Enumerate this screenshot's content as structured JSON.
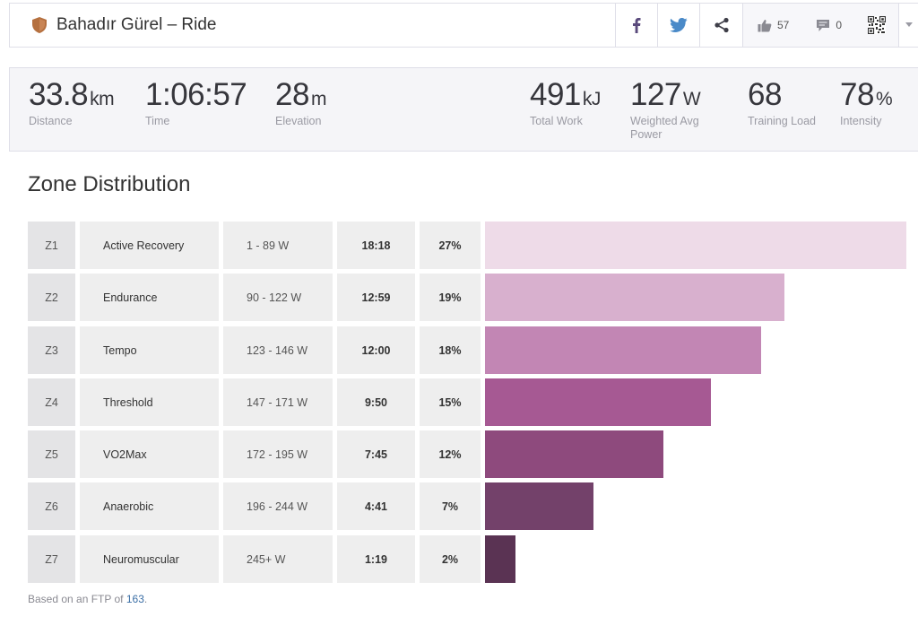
{
  "header": {
    "title": "Bahadır Gürel – Ride",
    "kudos_count": "57",
    "comments_count": "0",
    "icons": [
      "shield-badge-icon",
      "facebook-icon",
      "twitter-icon",
      "share-icon",
      "thumbs-up-icon",
      "comment-icon",
      "qr-code-icon",
      "chevron-down-icon"
    ]
  },
  "stats": {
    "distance": {
      "value": "33.8",
      "unit": "km",
      "label": "Distance"
    },
    "time": {
      "value": "1:06:57",
      "label": "Time"
    },
    "elevation": {
      "value": "28",
      "unit": "m",
      "label": "Elevation"
    },
    "total_work": {
      "value": "491",
      "unit": "kJ",
      "label": "Total Work"
    },
    "weighted_power": {
      "value": "127",
      "unit": "W",
      "label": "Weighted Avg Power"
    },
    "training_load": {
      "value": "68",
      "label": "Training Load"
    },
    "intensity": {
      "value": "78",
      "unit": "%",
      "label": "Intensity"
    }
  },
  "zones": {
    "title": "Zone Distribution",
    "rows": [
      {
        "zone": "Z1",
        "name": "Active Recovery",
        "range": "1 - 89 W",
        "time": "18:18",
        "pct": "27%",
        "fill": 1.0,
        "color": "#eedbe8"
      },
      {
        "zone": "Z2",
        "name": "Endurance",
        "range": "90 - 122 W",
        "time": "12:59",
        "pct": "19%",
        "fill": 0.71,
        "color": "#d8b0ce"
      },
      {
        "zone": "Z3",
        "name": "Tempo",
        "range": "123 - 146 W",
        "time": "12:00",
        "pct": "18%",
        "fill": 0.655,
        "color": "#c286b4"
      },
      {
        "zone": "Z4",
        "name": "Threshold",
        "range": "147 - 171 W",
        "time": "9:50",
        "pct": "15%",
        "fill": 0.536,
        "color": "#a65993"
      },
      {
        "zone": "Z5",
        "name": "VO2Max",
        "range": "172 - 195 W",
        "time": "7:45",
        "pct": "12%",
        "fill": 0.423,
        "color": "#8e4a7d"
      },
      {
        "zone": "Z6",
        "name": "Anaerobic",
        "range": "196 - 244 W",
        "time": "4:41",
        "pct": "7%",
        "fill": 0.257,
        "color": "#73416a"
      },
      {
        "zone": "Z7",
        "name": "Neuromuscular",
        "range": "245+ W",
        "time": "1:19",
        "pct": "2%",
        "fill": 0.073,
        "color": "#5a3353"
      }
    ],
    "ftp_prefix": "Based on an FTP of",
    "ftp_value": "163",
    "ftp_suffix": "."
  }
}
